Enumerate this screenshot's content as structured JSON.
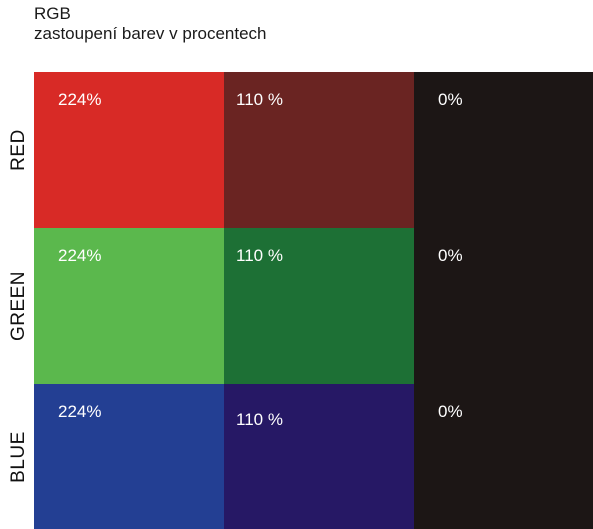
{
  "heading": {
    "title": "RGB",
    "subtitle": "zastoupení barev v procentech"
  },
  "colors": {
    "red_full": "#d82a26",
    "red_half": "#6a2422",
    "green_full": "#5bb84d",
    "green_half": "#1d7035",
    "blue_full": "#233f93",
    "blue_half": "#261865",
    "zero": "#1c1615"
  },
  "rows": [
    {
      "label": "RED",
      "cells": [
        "224%",
        "110 %",
        "0%"
      ]
    },
    {
      "label": "GREEN",
      "cells": [
        "224%",
        "110 %",
        "0%"
      ]
    },
    {
      "label": "BLUE",
      "cells": [
        "224%",
        "110 %",
        "0%"
      ]
    }
  ]
}
